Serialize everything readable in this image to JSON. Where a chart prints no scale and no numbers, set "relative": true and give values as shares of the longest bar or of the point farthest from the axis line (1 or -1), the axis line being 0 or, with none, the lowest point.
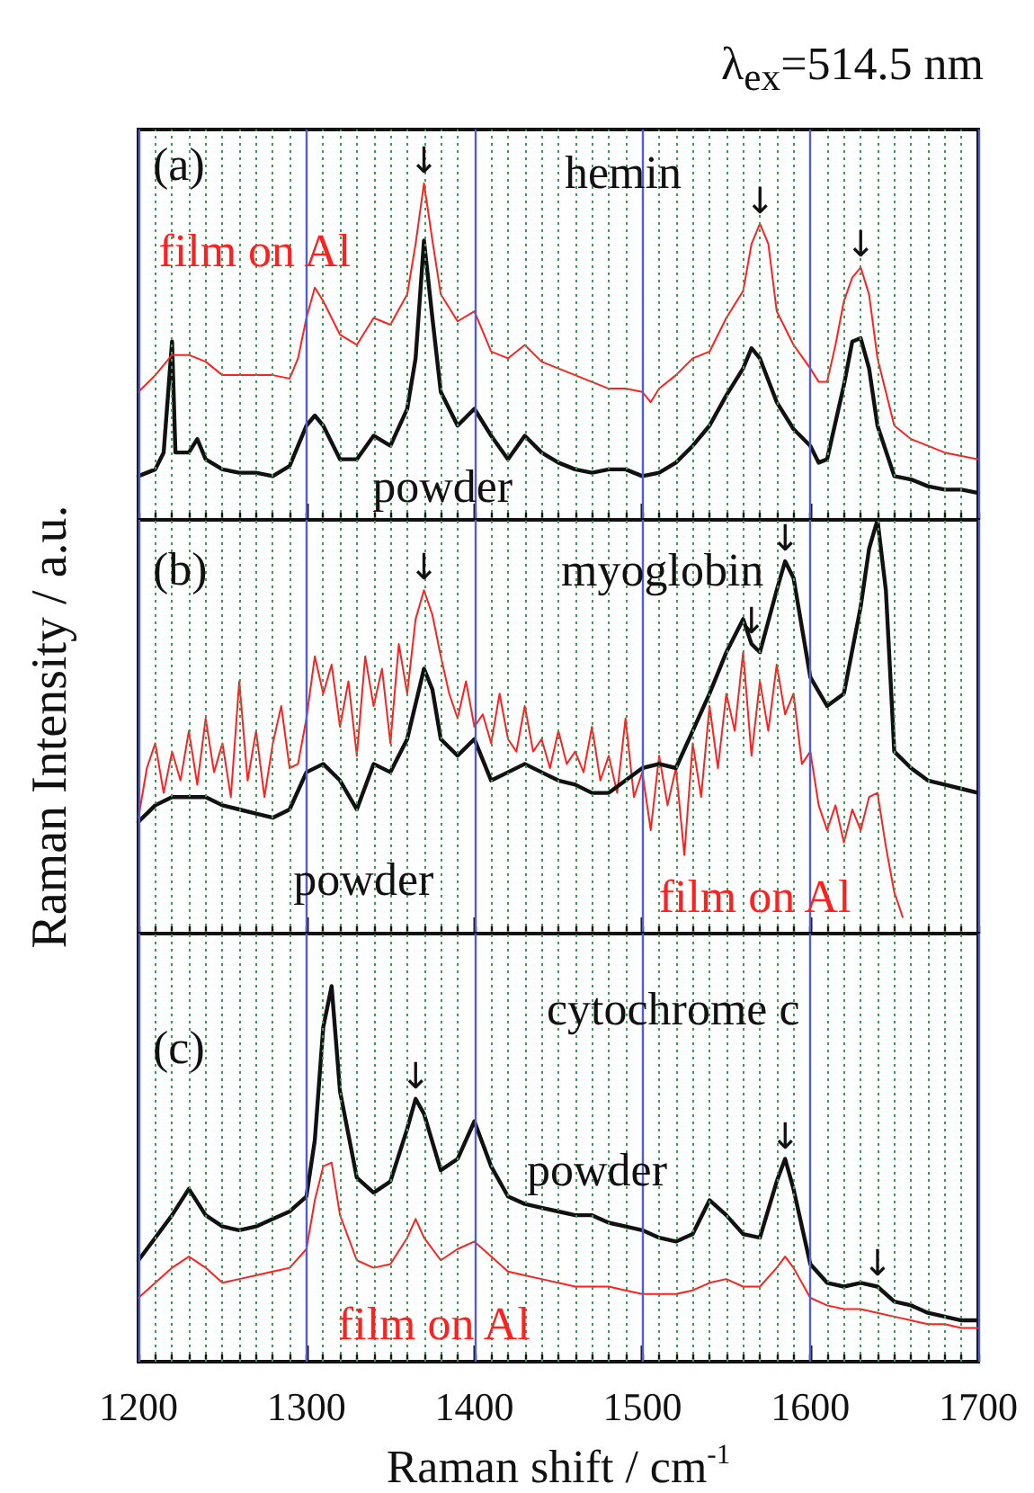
{
  "chart_data": [
    {
      "type": "line",
      "title": "hemin",
      "relative": true,
      "xlim": [
        1200,
        1700
      ],
      "xticks": [
        1200,
        {
          "value": 1210,
          "label": null
        },
        {
          "value": 1220,
          "label": null
        },
        {
          "value": 1230,
          "label": null
        },
        {
          "value": 1240,
          "label": null
        },
        {
          "value": 1250,
          "label": null
        },
        {
          "value": 1260,
          "label": null
        },
        {
          "value": 1270,
          "label": null
        },
        {
          "value": 1280,
          "label": null
        },
        {
          "value": 1290,
          "label": null
        },
        1300,
        {
          "value": 1310,
          "label": null
        },
        {
          "value": 1320,
          "label": null
        },
        {
          "value": 1330,
          "label": null
        },
        {
          "value": 1340,
          "label": null
        },
        {
          "value": 1350,
          "label": null
        },
        {
          "value": 1360,
          "label": null
        },
        {
          "value": 1370,
          "label": null
        },
        {
          "value": 1380,
          "label": null
        },
        {
          "value": 1390,
          "label": null
        },
        1400,
        {
          "value": 1410,
          "label": null
        },
        {
          "value": 1420,
          "label": null
        },
        {
          "value": 1430,
          "label": null
        },
        {
          "value": 1440,
          "label": null
        },
        {
          "value": 1450,
          "label": null
        },
        {
          "value": 1460,
          "label": null
        },
        {
          "value": 1470,
          "label": null
        },
        {
          "value": 1480,
          "label": null
        },
        {
          "value": 1490,
          "label": null
        },
        1500,
        {
          "value": 1510,
          "label": null
        },
        {
          "value": 1520,
          "label": null
        },
        {
          "value": 1530,
          "label": null
        },
        {
          "value": 1540,
          "label": null
        },
        {
          "value": 1550,
          "label": null
        },
        {
          "value": 1560,
          "label": null
        },
        {
          "value": 1570,
          "label": null
        },
        {
          "value": 1580,
          "label": null
        },
        {
          "value": 1590,
          "label": null
        },
        1600,
        {
          "value": 1610,
          "label": null
        },
        {
          "value": 1620,
          "label": null
        },
        {
          "value": 1630,
          "label": null
        },
        {
          "value": 1640,
          "label": null
        },
        {
          "value": 1650,
          "label": null
        },
        {
          "value": 1660,
          "label": null
        },
        {
          "value": 1670,
          "label": null
        },
        {
          "value": 1680,
          "label": null
        },
        {
          "value": 1690,
          "label": null
        },
        1700
      ],
      "tick_labels": false,
      "grid": "x",
      "legend": false,
      "marker": "none",
      "line_style": "solid",
      "annotations": [
        "(a)",
        "λ$_{ex}$=514.5 nm",
        {
          "text": "↓",
          "x": 1370,
          "y": 1
        },
        {
          "text": "↓",
          "x": 1570,
          "y": 0.88
        },
        {
          "text": "↓",
          "x": 1630,
          "y": 0.75
        }
      ],
      "series": [
        {
          "name": "film on Al",
          "color": "#ff2020",
          "x": [
            1200,
            1210,
            1220,
            1230,
            1240,
            1250,
            1260,
            1270,
            1280,
            1290,
            1295,
            1300,
            1305,
            1310,
            1320,
            1330,
            1340,
            1350,
            1360,
            1365,
            1370,
            1375,
            1380,
            1390,
            1400,
            1410,
            1420,
            1430,
            1440,
            1450,
            1460,
            1470,
            1480,
            1490,
            1500,
            1505,
            1510,
            1520,
            1530,
            1540,
            1550,
            1560,
            1565,
            1570,
            1575,
            1580,
            1590,
            1600,
            1605,
            1610,
            1615,
            1620,
            1625,
            1630,
            1635,
            1640,
            1650,
            1660,
            1670,
            1680,
            1690,
            1700
          ],
          "values": [
            0.38,
            0.43,
            0.49,
            0.49,
            0.47,
            0.43,
            0.43,
            0.43,
            0.43,
            0.42,
            0.48,
            0.6,
            0.69,
            0.65,
            0.55,
            0.52,
            0.6,
            0.58,
            0.67,
            0.82,
            1,
            0.83,
            0.67,
            0.59,
            0.62,
            0.5,
            0.48,
            0.52,
            0.47,
            0.45,
            0.43,
            0.41,
            0.39,
            0.39,
            0.38,
            0.35,
            0.39,
            0.43,
            0.48,
            0.5,
            0.6,
            0.68,
            0.82,
            0.88,
            0.82,
            0.62,
            0.52,
            0.45,
            0.41,
            0.41,
            0.52,
            0.65,
            0.72,
            0.75,
            0.67,
            0.48,
            0.28,
            0.24,
            0.22,
            0.2,
            0.19,
            0.18
          ]
        },
        {
          "name": "powder",
          "color": "#111111",
          "x": [
            1200,
            1210,
            1215,
            1220,
            1222,
            1230,
            1235,
            1240,
            1250,
            1260,
            1270,
            1280,
            1290,
            1295,
            1300,
            1305,
            1310,
            1320,
            1330,
            1340,
            1350,
            1360,
            1365,
            1370,
            1375,
            1380,
            1390,
            1400,
            1410,
            1420,
            1430,
            1440,
            1450,
            1460,
            1470,
            1480,
            1490,
            1500,
            1510,
            1520,
            1530,
            1540,
            1550,
            1560,
            1565,
            1570,
            1580,
            1590,
            1600,
            1605,
            1610,
            1620,
            1625,
            1630,
            1635,
            1640,
            1650,
            1660,
            1670,
            1680,
            1690,
            1700
          ],
          "values": [
            0.13,
            0.15,
            0.2,
            0.53,
            0.2,
            0.2,
            0.24,
            0.18,
            0.15,
            0.14,
            0.14,
            0.13,
            0.16,
            0.22,
            0.28,
            0.31,
            0.28,
            0.18,
            0.18,
            0.25,
            0.22,
            0.33,
            0.48,
            0.83,
            0.6,
            0.38,
            0.28,
            0.33,
            0.25,
            0.18,
            0.25,
            0.2,
            0.17,
            0.15,
            0.14,
            0.15,
            0.15,
            0.13,
            0.14,
            0.17,
            0.22,
            0.28,
            0.37,
            0.45,
            0.51,
            0.48,
            0.35,
            0.27,
            0.22,
            0.17,
            0.18,
            0.4,
            0.53,
            0.54,
            0.45,
            0.28,
            0.13,
            0.12,
            0.1,
            0.09,
            0.09,
            0.08
          ]
        }
      ]
    },
    {
      "type": "line",
      "title": "myoglobin",
      "relative": true,
      "xlim": [
        1200,
        1700
      ],
      "xticks": [
        1200,
        {
          "value": 1210,
          "label": null
        },
        {
          "value": 1220,
          "label": null
        },
        {
          "value": 1230,
          "label": null
        },
        {
          "value": 1240,
          "label": null
        },
        {
          "value": 1250,
          "label": null
        },
        {
          "value": 1260,
          "label": null
        },
        {
          "value": 1270,
          "label": null
        },
        {
          "value": 1280,
          "label": null
        },
        {
          "value": 1290,
          "label": null
        },
        1300,
        {
          "value": 1310,
          "label": null
        },
        {
          "value": 1320,
          "label": null
        },
        {
          "value": 1330,
          "label": null
        },
        {
          "value": 1340,
          "label": null
        },
        {
          "value": 1350,
          "label": null
        },
        {
          "value": 1360,
          "label": null
        },
        {
          "value": 1370,
          "label": null
        },
        {
          "value": 1380,
          "label": null
        },
        {
          "value": 1390,
          "label": null
        },
        1400,
        {
          "value": 1410,
          "label": null
        },
        {
          "value": 1420,
          "label": null
        },
        {
          "value": 1430,
          "label": null
        },
        {
          "value": 1440,
          "label": null
        },
        {
          "value": 1450,
          "label": null
        },
        {
          "value": 1460,
          "label": null
        },
        {
          "value": 1470,
          "label": null
        },
        {
          "value": 1480,
          "label": null
        },
        {
          "value": 1490,
          "label": null
        },
        1500,
        {
          "value": 1510,
          "label": null
        },
        {
          "value": 1520,
          "label": null
        },
        {
          "value": 1530,
          "label": null
        },
        {
          "value": 1540,
          "label": null
        },
        {
          "value": 1550,
          "label": null
        },
        {
          "value": 1560,
          "label": null
        },
        {
          "value": 1570,
          "label": null
        },
        {
          "value": 1580,
          "label": null
        },
        {
          "value": 1590,
          "label": null
        },
        1600,
        {
          "value": 1610,
          "label": null
        },
        {
          "value": 1620,
          "label": null
        },
        {
          "value": 1630,
          "label": null
        },
        {
          "value": 1640,
          "label": null
        },
        {
          "value": 1650,
          "label": null
        },
        {
          "value": 1660,
          "label": null
        },
        {
          "value": 1670,
          "label": null
        },
        {
          "value": 1680,
          "label": null
        },
        {
          "value": 1690,
          "label": null
        },
        1700
      ],
      "tick_labels": false,
      "grid": "x",
      "legend": false,
      "marker": "none",
      "line_style": "solid",
      "ylabel": "Raman Intensity / a.u.",
      "annotations": [
        "(b)",
        {
          "text": "↓",
          "x": 1370,
          "y": 0.83
        },
        {
          "text": "↓",
          "x": 1565,
          "y": 0.7
        },
        {
          "text": "↓",
          "x": 1585,
          "y": 0.9
        }
      ],
      "series": [
        {
          "name": "powder",
          "color": "#111111",
          "x": [
            1200,
            1210,
            1220,
            1230,
            1240,
            1250,
            1260,
            1270,
            1280,
            1290,
            1300,
            1310,
            1320,
            1330,
            1340,
            1350,
            1360,
            1370,
            1375,
            1380,
            1390,
            1400,
            1410,
            1420,
            1430,
            1440,
            1450,
            1460,
            1470,
            1480,
            1490,
            1500,
            1510,
            1520,
            1530,
            1540,
            1550,
            1560,
            1565,
            1570,
            1580,
            1585,
            1590,
            1600,
            1610,
            1620,
            1630,
            1635,
            1640,
            1645,
            1650,
            1660,
            1670,
            1680,
            1690,
            1700
          ],
          "values": [
            0.27,
            0.31,
            0.33,
            0.33,
            0.33,
            0.31,
            0.3,
            0.29,
            0.28,
            0.3,
            0.39,
            0.41,
            0.37,
            0.3,
            0.41,
            0.39,
            0.47,
            0.64,
            0.59,
            0.47,
            0.43,
            0.47,
            0.37,
            0.39,
            0.41,
            0.39,
            0.37,
            0.36,
            0.34,
            0.34,
            0.37,
            0.4,
            0.41,
            0.4,
            0.49,
            0.58,
            0.68,
            0.76,
            0.7,
            0.68,
            0.83,
            0.9,
            0.86,
            0.62,
            0.55,
            0.58,
            0.79,
            0.93,
            1,
            0.83,
            0.44,
            0.4,
            0.37,
            0.36,
            0.35,
            0.34
          ]
        },
        {
          "name": "film on Al",
          "color": "#ff2020",
          "x": [
            1200,
            1205,
            1210,
            1215,
            1220,
            1225,
            1230,
            1235,
            1240,
            1245,
            1250,
            1255,
            1260,
            1265,
            1270,
            1275,
            1280,
            1285,
            1290,
            1295,
            1300,
            1305,
            1310,
            1315,
            1320,
            1325,
            1330,
            1335,
            1340,
            1345,
            1350,
            1355,
            1360,
            1365,
            1370,
            1375,
            1380,
            1385,
            1390,
            1395,
            1400,
            1405,
            1410,
            1415,
            1420,
            1425,
            1430,
            1435,
            1440,
            1445,
            1450,
            1455,
            1460,
            1465,
            1470,
            1475,
            1480,
            1485,
            1490,
            1495,
            1500,
            1505,
            1510,
            1515,
            1520,
            1525,
            1530,
            1535,
            1540,
            1545,
            1550,
            1555,
            1560,
            1565,
            1570,
            1575,
            1580,
            1585,
            1590,
            1595,
            1600,
            1605,
            1610,
            1615,
            1620,
            1625,
            1630,
            1635,
            1640,
            1645,
            1650,
            1655
          ],
          "values": [
            0.28,
            0.4,
            0.46,
            0.34,
            0.44,
            0.37,
            0.49,
            0.36,
            0.52,
            0.39,
            0.46,
            0.33,
            0.61,
            0.37,
            0.49,
            0.33,
            0.46,
            0.55,
            0.4,
            0.41,
            0.52,
            0.67,
            0.58,
            0.65,
            0.5,
            0.61,
            0.43,
            0.67,
            0.55,
            0.64,
            0.46,
            0.7,
            0.58,
            0.76,
            0.83,
            0.77,
            0.67,
            0.58,
            0.52,
            0.61,
            0.5,
            0.53,
            0.46,
            0.58,
            0.47,
            0.44,
            0.55,
            0.44,
            0.47,
            0.4,
            0.49,
            0.41,
            0.44,
            0.39,
            0.5,
            0.37,
            0.43,
            0.34,
            0.52,
            0.33,
            0.39,
            0.25,
            0.43,
            0.31,
            0.4,
            0.19,
            0.46,
            0.33,
            0.55,
            0.4,
            0.58,
            0.49,
            0.68,
            0.43,
            0.61,
            0.49,
            0.65,
            0.53,
            0.58,
            0.41,
            0.44,
            0.31,
            0.25,
            0.31,
            0.22,
            0.3,
            0.25,
            0.33,
            0.34,
            0.21,
            0.1,
            0.04
          ]
        }
      ]
    },
    {
      "type": "line",
      "title": "cytochrome c",
      "relative": true,
      "xlim": [
        1200,
        1700
      ],
      "xticks": [
        1200,
        {
          "value": 1210,
          "label": null
        },
        {
          "value": 1220,
          "label": null
        },
        {
          "value": 1230,
          "label": null
        },
        {
          "value": 1240,
          "label": null
        },
        {
          "value": 1250,
          "label": null
        },
        {
          "value": 1260,
          "label": null
        },
        {
          "value": 1270,
          "label": null
        },
        {
          "value": 1280,
          "label": null
        },
        {
          "value": 1290,
          "label": null
        },
        1300,
        {
          "value": 1310,
          "label": null
        },
        {
          "value": 1320,
          "label": null
        },
        {
          "value": 1330,
          "label": null
        },
        {
          "value": 1340,
          "label": null
        },
        {
          "value": 1350,
          "label": null
        },
        {
          "value": 1360,
          "label": null
        },
        {
          "value": 1370,
          "label": null
        },
        {
          "value": 1380,
          "label": null
        },
        {
          "value": 1390,
          "label": null
        },
        1400,
        {
          "value": 1410,
          "label": null
        },
        {
          "value": 1420,
          "label": null
        },
        {
          "value": 1430,
          "label": null
        },
        {
          "value": 1440,
          "label": null
        },
        {
          "value": 1450,
          "label": null
        },
        {
          "value": 1460,
          "label": null
        },
        {
          "value": 1470,
          "label": null
        },
        {
          "value": 1480,
          "label": null
        },
        {
          "value": 1490,
          "label": null
        },
        1500,
        {
          "value": 1510,
          "label": null
        },
        {
          "value": 1520,
          "label": null
        },
        {
          "value": 1530,
          "label": null
        },
        {
          "value": 1540,
          "label": null
        },
        {
          "value": 1550,
          "label": null
        },
        {
          "value": 1560,
          "label": null
        },
        {
          "value": 1570,
          "label": null
        },
        {
          "value": 1580,
          "label": null
        },
        {
          "value": 1590,
          "label": null
        },
        1600,
        {
          "value": 1610,
          "label": null
        },
        {
          "value": 1620,
          "label": null
        },
        {
          "value": 1630,
          "label": null
        },
        {
          "value": 1640,
          "label": null
        },
        {
          "value": 1650,
          "label": null
        },
        {
          "value": 1660,
          "label": null
        },
        {
          "value": 1670,
          "label": null
        },
        {
          "value": 1680,
          "label": null
        },
        {
          "value": 1690,
          "label": null
        },
        1700
      ],
      "tick_labels": "x",
      "grid": "x",
      "legend": false,
      "marker": "none",
      "line_style": "solid",
      "xlabel": "Raman shift / cm$^{-1}$",
      "annotations": [
        "(c)",
        {
          "text": "↓",
          "x": 1365,
          "y": 0.7
        },
        {
          "text": "↓",
          "x": 1585,
          "y": 0.54
        },
        {
          "text": "↓",
          "x": 1640,
          "y": 0.2
        }
      ],
      "series": [
        {
          "name": "powder",
          "color": "#111111",
          "x": [
            1200,
            1210,
            1220,
            1230,
            1240,
            1250,
            1260,
            1270,
            1280,
            1290,
            1300,
            1305,
            1310,
            1315,
            1320,
            1330,
            1340,
            1350,
            1360,
            1365,
            1370,
            1380,
            1390,
            1400,
            1410,
            1420,
            1430,
            1440,
            1450,
            1460,
            1470,
            1480,
            1490,
            1500,
            1510,
            1520,
            1530,
            1540,
            1550,
            1560,
            1570,
            1580,
            1585,
            1590,
            1600,
            1610,
            1620,
            1630,
            1640,
            1650,
            1660,
            1670,
            1680,
            1690,
            1700
          ],
          "values": [
            0.27,
            0.33,
            0.39,
            0.46,
            0.39,
            0.36,
            0.35,
            0.36,
            0.38,
            0.4,
            0.44,
            0.59,
            0.89,
            1,
            0.72,
            0.49,
            0.45,
            0.48,
            0.62,
            0.7,
            0.66,
            0.51,
            0.54,
            0.64,
            0.52,
            0.44,
            0.42,
            0.41,
            0.4,
            0.39,
            0.39,
            0.37,
            0.36,
            0.35,
            0.33,
            0.32,
            0.34,
            0.43,
            0.39,
            0.34,
            0.33,
            0.48,
            0.54,
            0.46,
            0.26,
            0.21,
            0.2,
            0.21,
            0.2,
            0.16,
            0.15,
            0.13,
            0.12,
            0.11,
            0.11
          ]
        },
        {
          "name": "film on Al",
          "color": "#ff2020",
          "x": [
            1200,
            1210,
            1220,
            1230,
            1240,
            1250,
            1260,
            1270,
            1280,
            1290,
            1300,
            1305,
            1310,
            1315,
            1320,
            1330,
            1340,
            1350,
            1360,
            1365,
            1370,
            1380,
            1390,
            1400,
            1410,
            1420,
            1430,
            1440,
            1450,
            1460,
            1470,
            1480,
            1490,
            1500,
            1510,
            1520,
            1530,
            1540,
            1550,
            1560,
            1570,
            1580,
            1585,
            1590,
            1600,
            1610,
            1620,
            1630,
            1640,
            1650,
            1660,
            1670,
            1680,
            1690,
            1700
          ],
          "values": [
            0.17,
            0.21,
            0.25,
            0.28,
            0.25,
            0.21,
            0.22,
            0.23,
            0.24,
            0.25,
            0.3,
            0.43,
            0.52,
            0.53,
            0.39,
            0.27,
            0.25,
            0.26,
            0.33,
            0.38,
            0.33,
            0.27,
            0.3,
            0.32,
            0.28,
            0.24,
            0.23,
            0.22,
            0.21,
            0.2,
            0.2,
            0.2,
            0.19,
            0.18,
            0.18,
            0.18,
            0.19,
            0.21,
            0.22,
            0.2,
            0.2,
            0.25,
            0.28,
            0.25,
            0.17,
            0.15,
            0.14,
            0.14,
            0.13,
            0.12,
            0.11,
            0.1,
            0.1,
            0.09,
            0.09
          ]
        }
      ]
    }
  ]
}
